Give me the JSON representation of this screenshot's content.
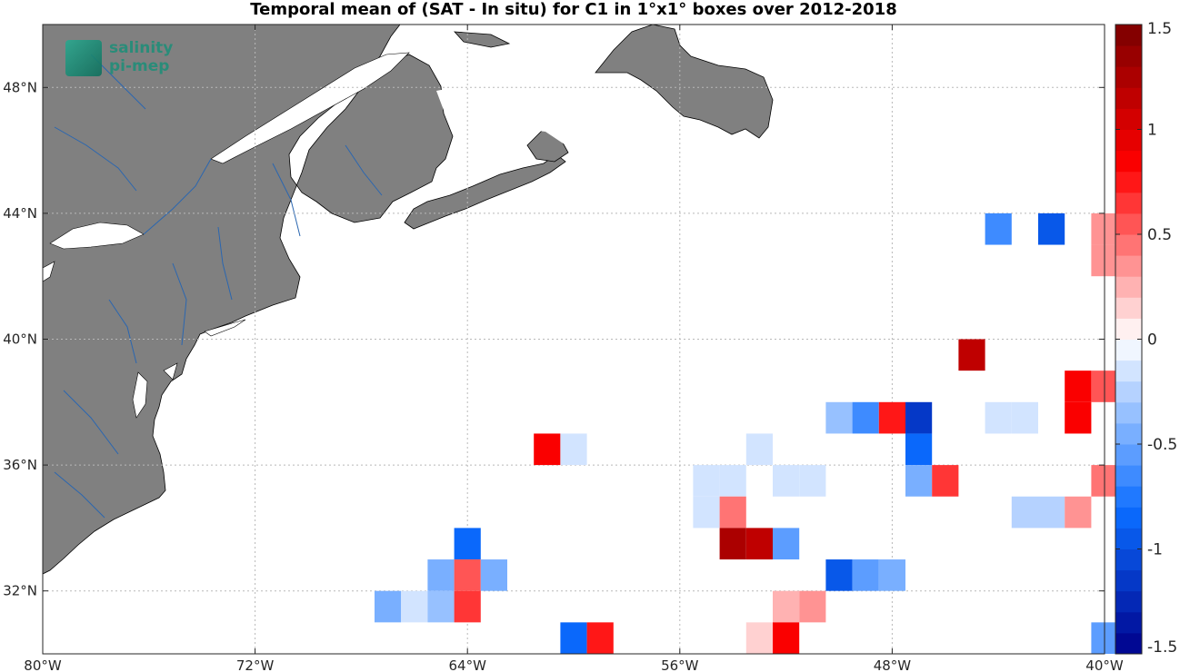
{
  "chart_data": {
    "type": "heatmap",
    "title": "Temporal mean of (SAT - In situ) for C1 in 1°x1° boxes over 2012-2018",
    "xlim": [
      -80,
      -40
    ],
    "ylim": [
      30,
      50
    ],
    "x_ticks": [
      -80,
      -72,
      -64,
      -56,
      -48,
      -40
    ],
    "x_tick_labels": [
      "80°W",
      "72°W",
      "64°W",
      "56°W",
      "48°W",
      "40°W"
    ],
    "y_ticks": [
      32,
      36,
      40,
      44,
      48
    ],
    "y_tick_labels": [
      "32°N",
      "36°N",
      "40°N",
      "44°N",
      "48°N"
    ],
    "grid": true,
    "colorbar": {
      "range": [
        -1.5,
        1.5
      ],
      "levels": 30,
      "ticks": [
        -1.5,
        -1,
        -0.5,
        0,
        0.5,
        1,
        1.5
      ],
      "tick_labels": [
        "-1.5",
        "-1",
        "-0.5",
        "0",
        "0.5",
        "1",
        "1.5"
      ],
      "placement": "right"
    },
    "cell_size_deg": 1,
    "cells": [
      {
        "lon": -44,
        "lat": 43.5,
        "value": -0.7
      },
      {
        "lon": -42,
        "lat": 43.5,
        "value": -1.0
      },
      {
        "lon": -40,
        "lat": 43.5,
        "value": 0.35
      },
      {
        "lon": -40,
        "lat": 42.5,
        "value": 0.3
      },
      {
        "lon": -45,
        "lat": 39.5,
        "value": 1.1
      },
      {
        "lon": -41,
        "lat": 38.5,
        "value": 0.9
      },
      {
        "lon": -40,
        "lat": 38.5,
        "value": 0.5
      },
      {
        "lon": -50,
        "lat": 37.5,
        "value": -0.3
      },
      {
        "lon": -49,
        "lat": 37.5,
        "value": -0.7
      },
      {
        "lon": -48,
        "lat": 37.5,
        "value": 0.7
      },
      {
        "lon": -47,
        "lat": 37.5,
        "value": -1.1
      },
      {
        "lon": -44,
        "lat": 37.5,
        "value": -0.1
      },
      {
        "lon": -43,
        "lat": 37.5,
        "value": -0.1
      },
      {
        "lon": -41,
        "lat": 37.5,
        "value": 0.9
      },
      {
        "lon": -61,
        "lat": 36.5,
        "value": 0.9
      },
      {
        "lon": -60,
        "lat": 36.5,
        "value": -0.15
      },
      {
        "lon": -53,
        "lat": 36.5,
        "value": -0.15
      },
      {
        "lon": -47,
        "lat": 36.5,
        "value": -0.85
      },
      {
        "lon": -55,
        "lat": 35.5,
        "value": -0.1
      },
      {
        "lon": -54,
        "lat": 35.5,
        "value": -0.1
      },
      {
        "lon": -52,
        "lat": 35.5,
        "value": -0.1
      },
      {
        "lon": -51,
        "lat": 35.5,
        "value": -0.1
      },
      {
        "lon": -47,
        "lat": 35.5,
        "value": -0.45
      },
      {
        "lon": -46,
        "lat": 35.5,
        "value": 0.6
      },
      {
        "lon": -40,
        "lat": 35.5,
        "value": 0.45
      },
      {
        "lon": -55,
        "lat": 34.5,
        "value": -0.1
      },
      {
        "lon": -54,
        "lat": 34.5,
        "value": 0.45
      },
      {
        "lon": -43,
        "lat": 34.5,
        "value": -0.25
      },
      {
        "lon": -42,
        "lat": 34.5,
        "value": -0.25
      },
      {
        "lon": -41,
        "lat": 34.5,
        "value": 0.3
      },
      {
        "lon": -64,
        "lat": 33.5,
        "value": -0.8
      },
      {
        "lon": -54,
        "lat": 33.5,
        "value": 1.25
      },
      {
        "lon": -53,
        "lat": 33.5,
        "value": 1.15
      },
      {
        "lon": -52,
        "lat": 33.5,
        "value": -0.55
      },
      {
        "lon": -65,
        "lat": 32.5,
        "value": -0.45
      },
      {
        "lon": -64,
        "lat": 32.5,
        "value": 0.5
      },
      {
        "lon": -63,
        "lat": 32.5,
        "value": -0.45
      },
      {
        "lon": -50,
        "lat": 32.5,
        "value": -0.9
      },
      {
        "lon": -49,
        "lat": 32.5,
        "value": -0.6
      },
      {
        "lon": -48,
        "lat": 32.5,
        "value": -0.5
      },
      {
        "lon": -67,
        "lat": 31.5,
        "value": -0.5
      },
      {
        "lon": -66,
        "lat": 31.5,
        "value": -0.15
      },
      {
        "lon": -65,
        "lat": 31.5,
        "value": -0.3
      },
      {
        "lon": -64,
        "lat": 31.5,
        "value": 0.6
      },
      {
        "lon": -52,
        "lat": 31.5,
        "value": 0.2
      },
      {
        "lon": -51,
        "lat": 31.5,
        "value": 0.3
      },
      {
        "lon": -60,
        "lat": 30.5,
        "value": -0.85
      },
      {
        "lon": -59,
        "lat": 30.5,
        "value": 0.7
      },
      {
        "lon": -53,
        "lat": 30.5,
        "value": 0.15
      },
      {
        "lon": -52,
        "lat": 30.5,
        "value": 0.85
      },
      {
        "lon": -40,
        "lat": 30.5,
        "value": -0.55
      }
    ]
  },
  "logo": {
    "line1": "salinity",
    "line2": "pi-mep"
  },
  "colors": {
    "land": "#808080",
    "coast": "#000000",
    "rivers": "#2a66b0",
    "grid": "#b8b8b8",
    "neg_max": "#00008a",
    "neg_mid": "#0a6cff",
    "neutral": "#ffffff",
    "pos_mid": "#ff0000",
    "pos_max": "#7a0000"
  }
}
